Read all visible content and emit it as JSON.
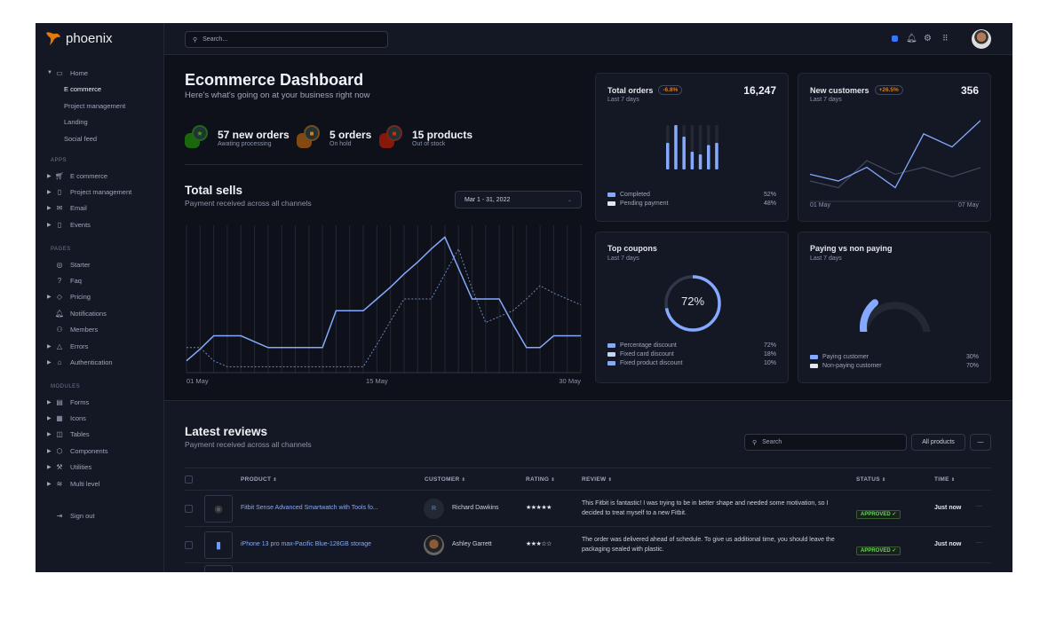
{
  "app": {
    "brand": "phoenix",
    "accent": "#85a9ff",
    "brand_color": "#e5780b"
  },
  "sidebar": {
    "home": {
      "label": "Home",
      "children": [
        "E commerce",
        "Project management",
        "Landing",
        "Social feed"
      ]
    },
    "sections": [
      {
        "title": "APPS",
        "items": [
          {
            "label": "E commerce",
            "icon": "cart-icon"
          },
          {
            "label": "Project management",
            "icon": "clipboard-icon"
          },
          {
            "label": "Email",
            "icon": "mail-icon"
          },
          {
            "label": "Events",
            "icon": "clipboard-icon"
          }
        ]
      },
      {
        "title": "PAGES",
        "items": [
          {
            "label": "Starter",
            "icon": "compass-icon"
          },
          {
            "label": "Faq",
            "icon": "help-circle-icon"
          },
          {
            "label": "Pricing",
            "icon": "tag-icon"
          },
          {
            "label": "Notifications",
            "icon": "bell-icon"
          },
          {
            "label": "Members",
            "icon": "users-icon"
          },
          {
            "label": "Errors",
            "icon": "alert-triangle-icon"
          },
          {
            "label": "Authentication",
            "icon": "lock-icon"
          }
        ]
      },
      {
        "title": "MODULES",
        "items": [
          {
            "label": "Forms",
            "icon": "file-text-icon"
          },
          {
            "label": "Icons",
            "icon": "grid-icon"
          },
          {
            "label": "Tables",
            "icon": "columns-icon"
          },
          {
            "label": "Components",
            "icon": "package-icon"
          },
          {
            "label": "Utilities",
            "icon": "tool-icon"
          },
          {
            "label": "Multi level",
            "icon": "layers-icon"
          }
        ]
      }
    ],
    "signout": "Sign out"
  },
  "topbar": {
    "search_placeholder": "Search..."
  },
  "header": {
    "title": "Ecommerce Dashboard",
    "subtitle": "Here's what's going on at your business right now"
  },
  "stats": [
    {
      "value": "57 new orders",
      "label": "Awating processing",
      "color": "#25b003"
    },
    {
      "value": "5 orders",
      "label": "On hold",
      "color": "#e5780b"
    },
    {
      "value": "15 products",
      "label": "Out of stock",
      "color": "#ec1f00"
    }
  ],
  "total_sells": {
    "title": "Total sells",
    "subtitle": "Payment received across all channels",
    "date_range": "Mar 1 - 31, 2022"
  },
  "cards": {
    "total_orders": {
      "title": "Total orders",
      "badge": "-6.8%",
      "value": "16,247",
      "period": "Last 7 days",
      "legend": [
        {
          "label": "Completed",
          "value": "52%",
          "color": "#85a9ff"
        },
        {
          "label": "Pending payment",
          "value": "48%",
          "color": "#e3e6ed"
        }
      ]
    },
    "new_customers": {
      "title": "New customers",
      "badge": "+26.5%",
      "value": "356",
      "period": "Last 7 days",
      "x_start": "01 May",
      "x_end": "07 May"
    },
    "top_coupons": {
      "title": "Top coupons",
      "period": "Last 7 days",
      "center": "72%",
      "legend": [
        {
          "label": "Percentage discount",
          "value": "72%",
          "color": "#85a9ff"
        },
        {
          "label": "Fixed card discount",
          "value": "18%",
          "color": "#c5d4f7"
        },
        {
          "label": "Fixed product discount",
          "value": "10%",
          "color": "#85a9ff"
        }
      ]
    },
    "paying": {
      "title": "Paying vs non paying",
      "period": "Last 7 days",
      "legend": [
        {
          "label": "Paying customer",
          "value": "30%",
          "color": "#85a9ff"
        },
        {
          "label": "Non-paying customer",
          "value": "70%",
          "color": "#e3e6ed"
        }
      ]
    }
  },
  "reviews": {
    "title": "Latest reviews",
    "subtitle": "Payment received across all channels",
    "search_placeholder": "Search",
    "filter": "All products",
    "more": "—",
    "columns": [
      "PRODUCT",
      "CUSTOMER",
      "RATING",
      "REVIEW",
      "STATUS",
      "TIME"
    ],
    "rows": [
      {
        "product": "Fitbit Sense Advanced Smartwatch with Tools fo...",
        "avatar_initial": "R",
        "customer": "Richard Dawkins",
        "rating": 5,
        "stars": "★★★★★",
        "review": "This Fitbit is fantastic! I was trying to be in better shape and needed some motivation, so I decided to treat myself to a new Fitbit.",
        "status": "APPROVED",
        "time": "Just now"
      },
      {
        "product": "iPhone 13 pro max-Pacific Blue-128GB storage",
        "avatar_initial": "",
        "customer": "Ashley Garrett",
        "rating": 3,
        "stars": "★★★☆☆",
        "review": "The order was delivered ahead of schedule. To give us additional time, you should leave the packaging sealed with plastic.",
        "status": "APPROVED",
        "time": "Just now"
      }
    ]
  },
  "chart_data": [
    {
      "type": "line",
      "x_ticks": [
        "01 May",
        "15 May",
        "30 May"
      ],
      "grid": true,
      "ylim": [
        0,
        100
      ],
      "x": [
        "01 May",
        "02 May",
        "03 May",
        "04 May",
        "05 May",
        "06 May",
        "07 May",
        "08 May",
        "09 May",
        "10 May",
        "11 May",
        "12 May",
        "13 May",
        "14 May",
        "15 May",
        "16 May",
        "17 May",
        "18 May",
        "19 May",
        "20 May",
        "21 May",
        "22 May",
        "23 May",
        "24 May",
        "25 May",
        "26 May",
        "27 May",
        "28 May",
        "29 May",
        "30 May"
      ],
      "series": [
        {
          "style": "solid",
          "color": "#85a9ff",
          "values": [
            8,
            16,
            25,
            25,
            25,
            21,
            17,
            17,
            17,
            17,
            17,
            42,
            42,
            42,
            50,
            58,
            67,
            75,
            84,
            92,
            71,
            50,
            50,
            50,
            33,
            17,
            17,
            25,
            25,
            25
          ]
        },
        {
          "style": "dashed",
          "color": "#6e86bf",
          "values": [
            17,
            17,
            8,
            4,
            4,
            4,
            4,
            4,
            4,
            4,
            4,
            4,
            4,
            4,
            19,
            35,
            50,
            50,
            50,
            67,
            84,
            57,
            34,
            38,
            42,
            50,
            59,
            54,
            50,
            46
          ]
        }
      ]
    },
    {
      "type": "bar",
      "title": "Total orders",
      "values": [
        0.6,
        1.0,
        0.74,
        0.4,
        0.34,
        0.55,
        0.6
      ],
      "ylim": [
        0,
        1
      ]
    },
    {
      "type": "line",
      "title": "New customers",
      "x_ticks": [
        "01 May",
        "07 May"
      ],
      "series": [
        {
          "color": "#85a9ff",
          "values": [
            89,
            67,
            112,
            45,
            222,
            179,
            266
          ]
        },
        {
          "color": "#3e465b",
          "values": [
            67,
            45,
            134,
            89,
            112,
            81,
            111
          ]
        }
      ],
      "ylim": [
        0,
        280
      ]
    },
    {
      "type": "pie",
      "title": "Top coupons",
      "values": [
        72,
        18,
        10
      ],
      "categories": [
        "Percentage discount",
        "Fixed card discount",
        "Fixed product discount"
      ]
    },
    {
      "type": "pie",
      "title": "Paying vs non paying",
      "values": [
        30,
        70
      ],
      "categories": [
        "Paying customer",
        "Non-paying customer"
      ]
    }
  ]
}
